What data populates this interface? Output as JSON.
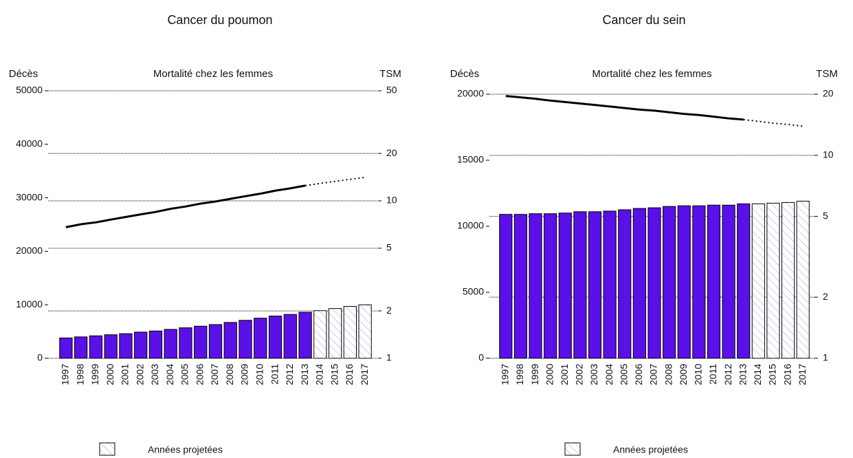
{
  "chart_data": [
    {
      "type": "bar",
      "title": "Cancer du poumon",
      "subtitle": "Mortalité chez les femmes",
      "y_label": "Décès",
      "y2_label": "TSM",
      "categories": [
        "1997",
        "1998",
        "1999",
        "2000",
        "2001",
        "2002",
        "2003",
        "2004",
        "2005",
        "2006",
        "2007",
        "2008",
        "2009",
        "2010",
        "2011",
        "2012",
        "2013",
        "2014",
        "2015",
        "2016",
        "2017"
      ],
      "ylim": [
        0,
        50000
      ],
      "yticks": [
        0,
        10000,
        20000,
        30000,
        40000,
        50000
      ],
      "y2lim": [
        1,
        50
      ],
      "y2ticks": [
        1,
        2,
        5,
        10,
        20,
        50
      ],
      "y2_log": true,
      "grid": true,
      "series": [
        {
          "kind": "bar",
          "color": "#5a10e8",
          "values": [
            3800,
            4000,
            4200,
            4400,
            4600,
            4900,
            5100,
            5400,
            5700,
            6000,
            6300,
            6700,
            7100,
            7500,
            7900,
            8200,
            8600,
            null,
            null,
            null,
            null
          ]
        },
        {
          "kind": "bar",
          "name": "Années projetées",
          "hatch": true,
          "color": "#9a9af0",
          "values": [
            null,
            null,
            null,
            null,
            null,
            null,
            null,
            null,
            null,
            null,
            null,
            null,
            null,
            null,
            null,
            null,
            null,
            8900,
            9300,
            9700,
            10000
          ]
        },
        {
          "kind": "line",
          "axis": "y2",
          "color": "#000000",
          "values": [
            6.8,
            7.1,
            7.3,
            7.6,
            7.9,
            8.2,
            8.5,
            8.9,
            9.2,
            9.6,
            9.9,
            10.3,
            10.7,
            11.1,
            11.6,
            12.0,
            12.5,
            null,
            null,
            null,
            null
          ]
        },
        {
          "kind": "line",
          "axis": "y2",
          "dash": "dotted",
          "color": "#000000",
          "values": [
            null,
            null,
            null,
            null,
            null,
            null,
            null,
            null,
            null,
            null,
            null,
            null,
            null,
            null,
            null,
            null,
            12.5,
            12.9,
            13.3,
            13.7,
            14.1
          ]
        }
      ]
    },
    {
      "type": "bar",
      "title": "Cancer du sein",
      "subtitle": "Mortalité chez les femmes",
      "y_label": "Décès",
      "y2_label": "TSM",
      "categories": [
        "1997",
        "1998",
        "1999",
        "2000",
        "2001",
        "2002",
        "2003",
        "2004",
        "2005",
        "2006",
        "2007",
        "2008",
        "2009",
        "2010",
        "2011",
        "2012",
        "2013",
        "2014",
        "2015",
        "2016",
        "2017"
      ],
      "ylim": [
        0,
        20000
      ],
      "yticks": [
        0,
        5000,
        10000,
        15000,
        20000
      ],
      "y2lim": [
        1,
        20
      ],
      "y2ticks": [
        1,
        2,
        5,
        10,
        20
      ],
      "y2_log": true,
      "grid": true,
      "series": [
        {
          "kind": "bar",
          "color": "#5a10e8",
          "values": [
            10900,
            10900,
            10950,
            10950,
            11000,
            11100,
            11100,
            11150,
            11250,
            11350,
            11400,
            11500,
            11550,
            11550,
            11600,
            11600,
            11700,
            null,
            null,
            null,
            null
          ]
        },
        {
          "kind": "bar",
          "name": "Années projetées",
          "hatch": true,
          "color": "#9a9af0",
          "values": [
            null,
            null,
            null,
            null,
            null,
            null,
            null,
            null,
            null,
            null,
            null,
            null,
            null,
            null,
            null,
            null,
            null,
            11700,
            11750,
            11800,
            11900
          ]
        },
        {
          "kind": "line",
          "axis": "y2",
          "color": "#000000",
          "values": [
            19.6,
            19.3,
            19.0,
            18.6,
            18.3,
            18.0,
            17.7,
            17.4,
            17.1,
            16.8,
            16.6,
            16.3,
            16.0,
            15.8,
            15.5,
            15.2,
            15.0,
            null,
            null,
            null,
            null
          ]
        },
        {
          "kind": "line",
          "axis": "y2",
          "dash": "dotted",
          "color": "#000000",
          "values": [
            null,
            null,
            null,
            null,
            null,
            null,
            null,
            null,
            null,
            null,
            null,
            null,
            null,
            null,
            null,
            null,
            15.0,
            14.7,
            14.4,
            14.2,
            13.9
          ]
        }
      ]
    }
  ]
}
